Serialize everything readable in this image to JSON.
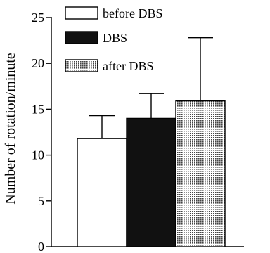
{
  "chart_data": {
    "type": "bar",
    "title": "",
    "xlabel": "",
    "ylabel": "Number of rotation/minute",
    "ylim": [
      0,
      25
    ],
    "yticks": [
      0,
      5,
      10,
      15,
      20,
      25
    ],
    "grid": false,
    "legend_position": "top-left",
    "series": [
      {
        "name": "before DBS",
        "value": 11.8,
        "error": 2.5,
        "fill": "white"
      },
      {
        "name": "DBS",
        "value": 14.0,
        "error": 2.7,
        "fill": "black"
      },
      {
        "name": "after DBS",
        "value": 15.9,
        "error": 6.9,
        "fill": "dotted"
      }
    ]
  }
}
